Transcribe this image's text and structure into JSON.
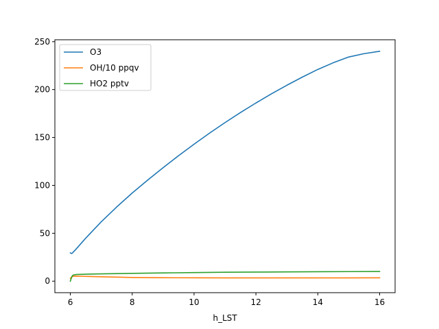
{
  "chart_data": {
    "type": "line",
    "title": "",
    "xlabel": "h_LST",
    "ylabel": "",
    "xlim": [
      5.5,
      16.5
    ],
    "ylim": [
      -12,
      252
    ],
    "xticks": [
      6,
      8,
      10,
      12,
      14,
      16
    ],
    "yticks": [
      0,
      50,
      100,
      150,
      200,
      250
    ],
    "grid": false,
    "legend": "top-left",
    "series": [
      {
        "name": "O3",
        "color": "#1f77b4",
        "points": [
          [
            6.0,
            29.5
          ],
          [
            6.05,
            28.9
          ],
          [
            6.1,
            30.5
          ],
          [
            6.2,
            34.0
          ],
          [
            6.5,
            45.0
          ],
          [
            7.0,
            62.0
          ],
          [
            7.5,
            77.5
          ],
          [
            8.0,
            92.0
          ],
          [
            8.5,
            105.5
          ],
          [
            9.0,
            118.5
          ],
          [
            9.5,
            131.0
          ],
          [
            10.0,
            143.0
          ],
          [
            10.5,
            154.5
          ],
          [
            11.0,
            165.5
          ],
          [
            11.5,
            176.0
          ],
          [
            12.0,
            186.0
          ],
          [
            12.5,
            195.5
          ],
          [
            13.0,
            204.5
          ],
          [
            13.5,
            213.0
          ],
          [
            14.0,
            221.0
          ],
          [
            14.5,
            228.0
          ],
          [
            15.0,
            234.0
          ],
          [
            15.5,
            237.5
          ],
          [
            16.0,
            240.0
          ]
        ]
      },
      {
        "name": "OH/10 ppqv",
        "color": "#ff7f0e",
        "points": [
          [
            6.0,
            3.0
          ],
          [
            6.05,
            4.5
          ],
          [
            6.1,
            5.2
          ],
          [
            6.2,
            5.3
          ],
          [
            6.5,
            5.0
          ],
          [
            7.0,
            4.6
          ],
          [
            7.5,
            4.2
          ],
          [
            8.0,
            3.9
          ],
          [
            9.0,
            3.6
          ],
          [
            10.0,
            3.5
          ],
          [
            11.0,
            3.4
          ],
          [
            12.0,
            3.4
          ],
          [
            13.0,
            3.4
          ],
          [
            14.0,
            3.4
          ],
          [
            15.0,
            3.4
          ],
          [
            16.0,
            3.5
          ]
        ]
      },
      {
        "name": "HO2 pptv",
        "color": "#2ca02c",
        "points": [
          [
            6.0,
            0.0
          ],
          [
            6.03,
            3.0
          ],
          [
            6.06,
            5.5
          ],
          [
            6.1,
            6.5
          ],
          [
            6.2,
            7.0
          ],
          [
            6.5,
            7.3
          ],
          [
            7.0,
            7.6
          ],
          [
            8.0,
            8.2
          ],
          [
            9.0,
            8.6
          ],
          [
            10.0,
            9.0
          ],
          [
            11.0,
            9.3
          ],
          [
            12.0,
            9.5
          ],
          [
            13.0,
            9.7
          ],
          [
            14.0,
            9.9
          ],
          [
            15.0,
            10.0
          ],
          [
            16.0,
            10.1
          ]
        ]
      }
    ]
  }
}
